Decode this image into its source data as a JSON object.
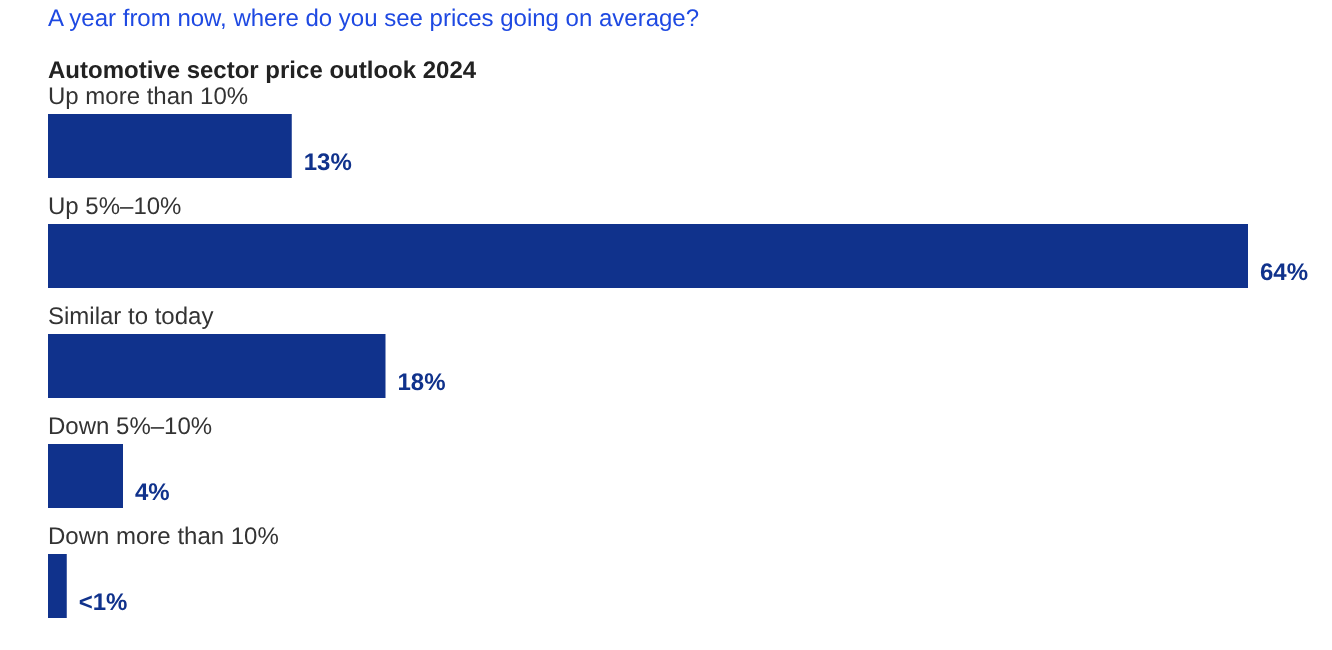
{
  "chart_data": {
    "type": "bar",
    "orientation": "horizontal",
    "subtitle": "A year from now, where do you see prices going on average?",
    "title": "Automotive sector price outlook 2024",
    "categories": [
      "Up more than 10%",
      "Up 5%–10%",
      "Similar to today",
      "Down 5%–10%",
      "Down more than 10%"
    ],
    "values": [
      13,
      64,
      18,
      4,
      1
    ],
    "value_labels": [
      "13%",
      "64%",
      "18%",
      "4%",
      "<1%"
    ],
    "color": "#10328c"
  }
}
